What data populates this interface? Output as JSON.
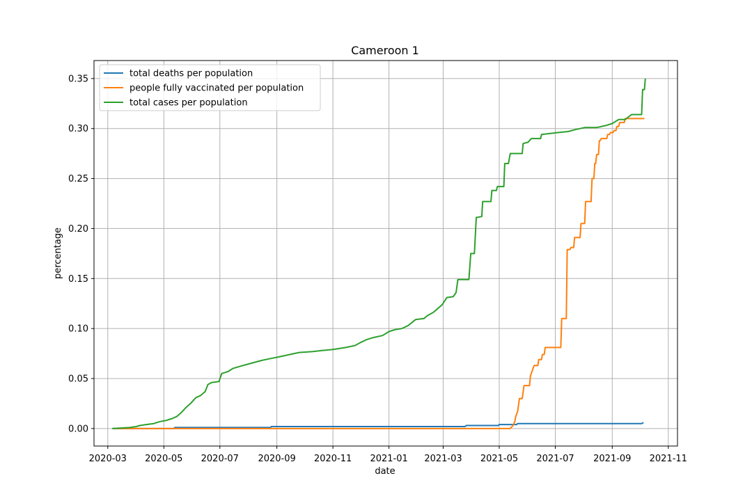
{
  "chart_data": {
    "type": "line",
    "title": "Cameroon 1",
    "xlabel": "date",
    "ylabel": "percentage",
    "x_ticks": [
      "2020-03",
      "2020-05",
      "2020-07",
      "2020-09",
      "2020-11",
      "2021-01",
      "2021-03",
      "2021-05",
      "2021-07",
      "2021-09",
      "2021-11"
    ],
    "y_ticks": [
      "0.00",
      "0.05",
      "0.10",
      "0.15",
      "0.20",
      "0.25",
      "0.30",
      "0.35"
    ],
    "ylim": [
      -0.0175,
      0.368
    ],
    "xlim": [
      "2020-02-15",
      "2021-11-11"
    ],
    "grid": true,
    "legend_position": "upper-left",
    "series": [
      {
        "name": "total deaths per population",
        "color": "#1f77b4",
        "points": [
          [
            "2020-03-06",
            0.0
          ],
          [
            "2020-05-12",
            0.0
          ],
          [
            "2020-05-13",
            0.001
          ],
          [
            "2020-08-25",
            0.001
          ],
          [
            "2020-08-26",
            0.002
          ],
          [
            "2021-03-25",
            0.002
          ],
          [
            "2021-03-26",
            0.003
          ],
          [
            "2021-04-30",
            0.003
          ],
          [
            "2021-05-01",
            0.004
          ],
          [
            "2021-05-20",
            0.004
          ],
          [
            "2021-05-21",
            0.005
          ],
          [
            "2021-10-03",
            0.005
          ],
          [
            "2021-10-05",
            0.006
          ]
        ]
      },
      {
        "name": "people fully vaccinated per population",
        "color": "#ff7f0e",
        "points": [
          [
            "2020-03-06",
            0.0
          ],
          [
            "2021-05-13",
            0.0
          ],
          [
            "2021-05-14",
            0.001
          ],
          [
            "2021-05-16",
            0.003
          ],
          [
            "2021-05-18",
            0.007
          ],
          [
            "2021-05-19",
            0.012
          ],
          [
            "2021-05-21",
            0.017
          ],
          [
            "2021-05-23",
            0.03
          ],
          [
            "2021-05-26",
            0.03
          ],
          [
            "2021-05-28",
            0.043
          ],
          [
            "2021-06-03",
            0.043
          ],
          [
            "2021-06-04",
            0.053
          ],
          [
            "2021-06-06",
            0.058
          ],
          [
            "2021-06-08",
            0.063
          ],
          [
            "2021-06-12",
            0.063
          ],
          [
            "2021-06-13",
            0.069
          ],
          [
            "2021-06-16",
            0.069
          ],
          [
            "2021-06-17",
            0.074
          ],
          [
            "2021-06-19",
            0.074
          ],
          [
            "2021-06-20",
            0.081
          ],
          [
            "2021-07-07",
            0.081
          ],
          [
            "2021-07-08",
            0.11
          ],
          [
            "2021-07-13",
            0.11
          ],
          [
            "2021-07-14",
            0.179
          ],
          [
            "2021-07-17",
            0.179
          ],
          [
            "2021-07-18",
            0.181
          ],
          [
            "2021-07-21",
            0.181
          ],
          [
            "2021-07-22",
            0.191
          ],
          [
            "2021-07-28",
            0.191
          ],
          [
            "2021-07-29",
            0.205
          ],
          [
            "2021-08-02",
            0.205
          ],
          [
            "2021-08-03",
            0.227
          ],
          [
            "2021-08-09",
            0.227
          ],
          [
            "2021-08-10",
            0.25
          ],
          [
            "2021-08-12",
            0.25
          ],
          [
            "2021-08-13",
            0.265
          ],
          [
            "2021-08-14",
            0.265
          ],
          [
            "2021-08-15",
            0.274
          ],
          [
            "2021-08-17",
            0.274
          ],
          [
            "2021-08-18",
            0.288
          ],
          [
            "2021-08-19",
            0.288
          ],
          [
            "2021-08-20",
            0.29
          ],
          [
            "2021-08-26",
            0.29
          ],
          [
            "2021-08-27",
            0.294
          ],
          [
            "2021-08-29",
            0.294
          ],
          [
            "2021-08-30",
            0.296
          ],
          [
            "2021-09-02",
            0.296
          ],
          [
            "2021-09-03",
            0.298
          ],
          [
            "2021-09-05",
            0.298
          ],
          [
            "2021-09-06",
            0.302
          ],
          [
            "2021-09-08",
            0.302
          ],
          [
            "2021-09-09",
            0.306
          ],
          [
            "2021-09-14",
            0.306
          ],
          [
            "2021-09-15",
            0.31
          ],
          [
            "2021-10-06",
            0.31
          ]
        ]
      },
      {
        "name": "total cases per population",
        "color": "#2ca02c",
        "points": [
          [
            "2020-03-06",
            0.0
          ],
          [
            "2020-03-25",
            0.001
          ],
          [
            "2020-04-01",
            0.002
          ],
          [
            "2020-04-05",
            0.003
          ],
          [
            "2020-04-12",
            0.004
          ],
          [
            "2020-04-20",
            0.005
          ],
          [
            "2020-04-27",
            0.007
          ],
          [
            "2020-05-03",
            0.008
          ],
          [
            "2020-05-10",
            0.01
          ],
          [
            "2020-05-15",
            0.012
          ],
          [
            "2020-05-20",
            0.016
          ],
          [
            "2020-05-25",
            0.021
          ],
          [
            "2020-05-30",
            0.025
          ],
          [
            "2020-06-05",
            0.031
          ],
          [
            "2020-06-10",
            0.033
          ],
          [
            "2020-06-15",
            0.037
          ],
          [
            "2020-06-18",
            0.044
          ],
          [
            "2020-06-22",
            0.046
          ],
          [
            "2020-06-30",
            0.047
          ],
          [
            "2020-07-03",
            0.055
          ],
          [
            "2020-07-10",
            0.057
          ],
          [
            "2020-07-15",
            0.06
          ],
          [
            "2020-07-22",
            0.062
          ],
          [
            "2020-07-30",
            0.064
          ],
          [
            "2020-08-07",
            0.066
          ],
          [
            "2020-08-15",
            0.068
          ],
          [
            "2020-08-25",
            0.07
          ],
          [
            "2020-09-05",
            0.072
          ],
          [
            "2020-09-15",
            0.074
          ],
          [
            "2020-09-25",
            0.076
          ],
          [
            "2020-10-10",
            0.077
          ],
          [
            "2020-10-20",
            0.078
          ],
          [
            "2020-11-01",
            0.079
          ],
          [
            "2020-11-15",
            0.081
          ],
          [
            "2020-11-25",
            0.083
          ],
          [
            "2020-12-01",
            0.086
          ],
          [
            "2020-12-08",
            0.089
          ],
          [
            "2020-12-15",
            0.091
          ],
          [
            "2020-12-25",
            0.093
          ],
          [
            "2021-01-01",
            0.097
          ],
          [
            "2021-01-08",
            0.099
          ],
          [
            "2021-01-15",
            0.1
          ],
          [
            "2021-01-22",
            0.103
          ],
          [
            "2021-01-30",
            0.109
          ],
          [
            "2021-02-08",
            0.11
          ],
          [
            "2021-02-12",
            0.113
          ],
          [
            "2021-02-18",
            0.116
          ],
          [
            "2021-02-22",
            0.119
          ],
          [
            "2021-02-28",
            0.124
          ],
          [
            "2021-03-05",
            0.131
          ],
          [
            "2021-03-12",
            0.132
          ],
          [
            "2021-03-15",
            0.136
          ],
          [
            "2021-03-17",
            0.149
          ],
          [
            "2021-03-29",
            0.149
          ],
          [
            "2021-03-31",
            0.175
          ],
          [
            "2021-04-04",
            0.175
          ],
          [
            "2021-04-06",
            0.211
          ],
          [
            "2021-04-12",
            0.212
          ],
          [
            "2021-04-13",
            0.227
          ],
          [
            "2021-04-22",
            0.227
          ],
          [
            "2021-04-23",
            0.238
          ],
          [
            "2021-04-28",
            0.238
          ],
          [
            "2021-04-29",
            0.242
          ],
          [
            "2021-05-06",
            0.242
          ],
          [
            "2021-05-07",
            0.265
          ],
          [
            "2021-05-11",
            0.265
          ],
          [
            "2021-05-13",
            0.275
          ],
          [
            "2021-05-26",
            0.275
          ],
          [
            "2021-05-27",
            0.285
          ],
          [
            "2021-05-31",
            0.286
          ],
          [
            "2021-06-01",
            0.286
          ],
          [
            "2021-06-05",
            0.29
          ],
          [
            "2021-06-15",
            0.29
          ],
          [
            "2021-06-16",
            0.294
          ],
          [
            "2021-06-25",
            0.295
          ],
          [
            "2021-07-04",
            0.296
          ],
          [
            "2021-07-15",
            0.297
          ],
          [
            "2021-07-23",
            0.299
          ],
          [
            "2021-08-02",
            0.301
          ],
          [
            "2021-08-15",
            0.301
          ],
          [
            "2021-08-25",
            0.303
          ],
          [
            "2021-09-01",
            0.305
          ],
          [
            "2021-09-08",
            0.309
          ],
          [
            "2021-09-15",
            0.309
          ],
          [
            "2021-09-22",
            0.314
          ],
          [
            "2021-09-25",
            0.314
          ],
          [
            "2021-10-03",
            0.314
          ],
          [
            "2021-10-04",
            0.339
          ],
          [
            "2021-10-06",
            0.339
          ],
          [
            "2021-10-07",
            0.35
          ]
        ]
      }
    ]
  }
}
